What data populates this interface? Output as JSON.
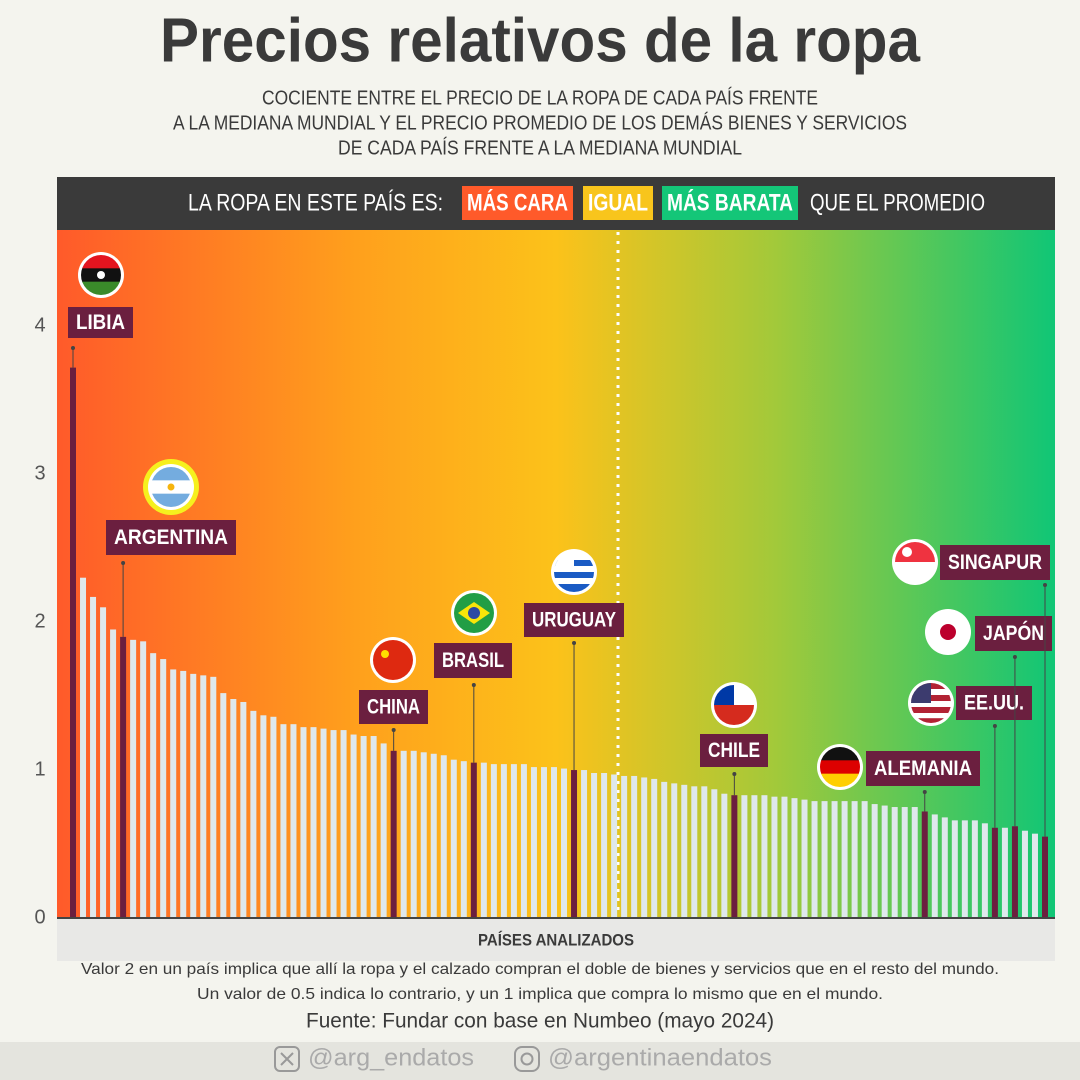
{
  "chart_data": {
    "type": "bar",
    "title": "Precios relativos de la ropa",
    "subtitle_lines": [
      "COCIENTE ENTRE EL PRECIO DE LA ROPA DE CADA PAÍS FRENTE",
      "A LA MEDIANA MUNDIAL Y EL PRECIO PROMEDIO DE LOS DEMÁS BIENES Y SERVICIOS",
      "DE CADA PAÍS FRENTE A LA MEDIANA MUNDIAL"
    ],
    "legend": {
      "lead": "LA ROPA EN ESTE PAÍS ES:",
      "items": [
        {
          "label": "MÁS CARA",
          "color": "#ff5a2a"
        },
        {
          "label": "IGUAL",
          "color": "#f8c51c"
        },
        {
          "label": "MÁS BARATA",
          "color": "#14c678"
        }
      ],
      "tail": "QUE EL PROMEDIO"
    },
    "x_label": "PAÍSES ANALIZADOS",
    "categories": [
      "LIBIA",
      null,
      null,
      null,
      null,
      "ARGENTINA",
      null,
      null,
      null,
      null,
      null,
      null,
      null,
      null,
      null,
      null,
      null,
      null,
      null,
      null,
      null,
      null,
      null,
      null,
      null,
      null,
      null,
      null,
      null,
      null,
      null,
      null,
      "CHINA",
      null,
      null,
      null,
      null,
      null,
      null,
      null,
      "BRASIL",
      null,
      null,
      null,
      null,
      null,
      null,
      null,
      null,
      null,
      "URUGUAY",
      null,
      null,
      null,
      null,
      null,
      null,
      null,
      null,
      null,
      null,
      null,
      null,
      null,
      null,
      null,
      "CHILE",
      null,
      null,
      null,
      null,
      null,
      null,
      null,
      null,
      null,
      null,
      null,
      null,
      null,
      null,
      null,
      null,
      null,
      null,
      "ALEMANIA",
      null,
      null,
      null,
      null,
      null,
      null,
      "EE.UU.",
      null,
      "JAPÓN",
      null,
      null,
      "SINGAPUR"
    ],
    "values": [
      3.72,
      2.3,
      2.17,
      2.1,
      1.95,
      1.9,
      1.88,
      1.87,
      1.79,
      1.75,
      1.68,
      1.67,
      1.65,
      1.64,
      1.63,
      1.52,
      1.48,
      1.46,
      1.4,
      1.37,
      1.36,
      1.31,
      1.31,
      1.29,
      1.29,
      1.28,
      1.27,
      1.27,
      1.24,
      1.23,
      1.23,
      1.18,
      1.13,
      1.13,
      1.13,
      1.12,
      1.11,
      1.1,
      1.07,
      1.06,
      1.05,
      1.05,
      1.04,
      1.04,
      1.04,
      1.04,
      1.02,
      1.02,
      1.02,
      1.01,
      1.0,
      1.0,
      0.98,
      0.98,
      0.97,
      0.96,
      0.96,
      0.95,
      0.94,
      0.92,
      0.91,
      0.9,
      0.89,
      0.89,
      0.87,
      0.84,
      0.83,
      0.83,
      0.83,
      0.83,
      0.82,
      0.82,
      0.81,
      0.8,
      0.79,
      0.79,
      0.79,
      0.79,
      0.79,
      0.79,
      0.77,
      0.76,
      0.75,
      0.75,
      0.75,
      0.72,
      0.7,
      0.68,
      0.66,
      0.66,
      0.66,
      0.64,
      0.61,
      0.61,
      0.62,
      0.59,
      0.57,
      0.55
    ],
    "color": "#dfe8ec",
    "highlight_color": "#6b1f3f",
    "ylim": [
      0,
      4.65
    ],
    "yticks": [
      0,
      1,
      2,
      3,
      4
    ],
    "notes": [
      "Valor 2 en un país implica que allí la ropa y el calzado compran el doble de bienes y servicios que en el resto del mundo.",
      "Un valor  de 0.5 indica lo contrario, y un  1 implica que compra lo mismo que en el mundo."
    ],
    "source": "Fuente: Fundar con base en Numbeo (mayo 2024)",
    "social": [
      "@arg_endatos",
      "@argentinaendatos"
    ]
  }
}
